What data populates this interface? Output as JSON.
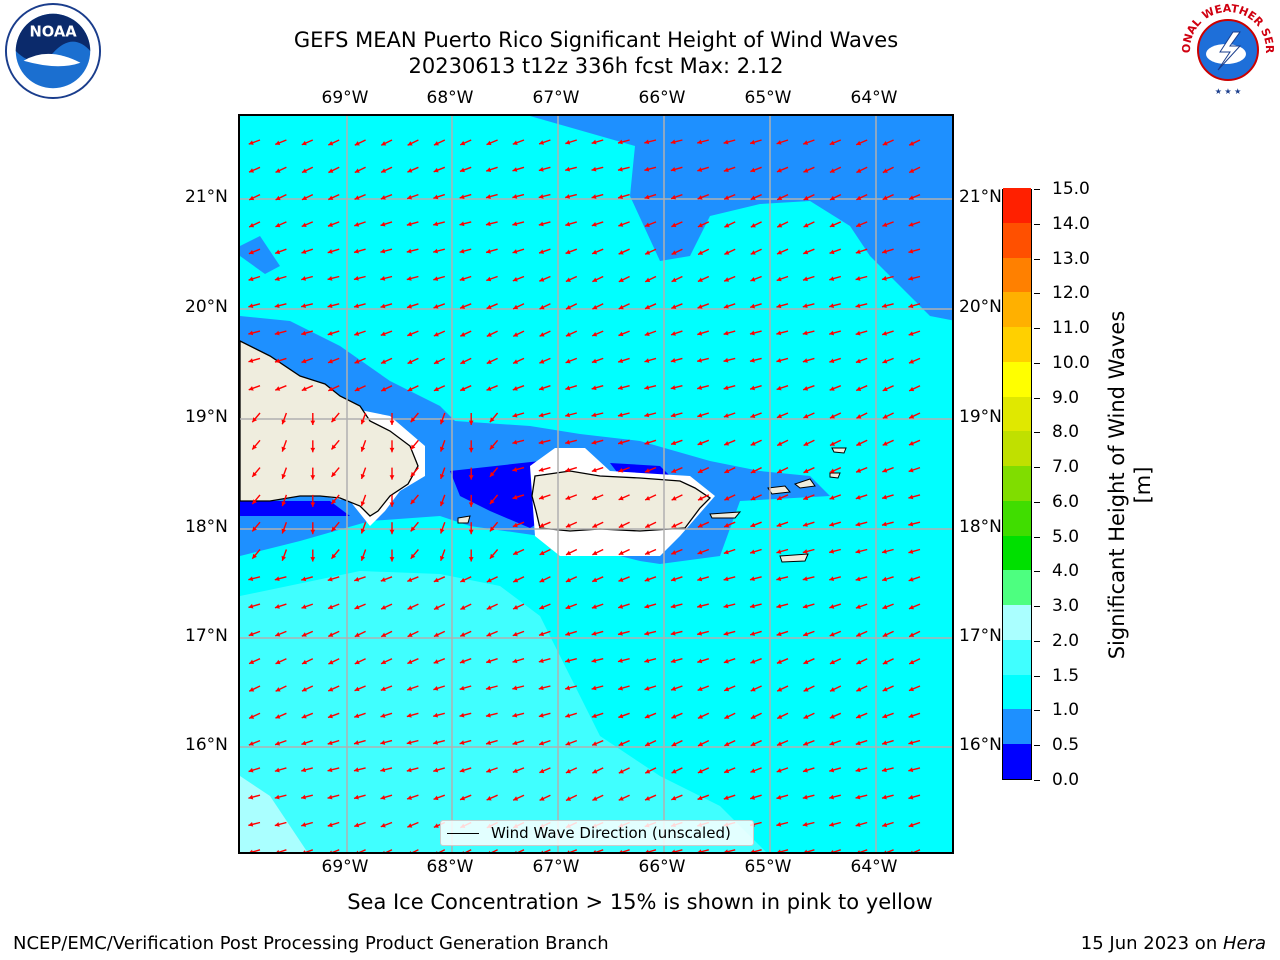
{
  "title": {
    "line1": "GEFS MEAN Puerto Rico Significant Height of Wind Waves",
    "line2": "20230613 t12z 336h fcst   Max: 2.12"
  },
  "map": {
    "lon_labels": [
      "69°W",
      "68°W",
      "67°W",
      "66°W",
      "65°W",
      "64°W"
    ],
    "lat_labels": [
      "21°N",
      "20°N",
      "19°N",
      "18°N",
      "17°N",
      "16°N"
    ],
    "legend_label": "Wind Wave Direction (unscaled)",
    "arrow_color": "#ff0000",
    "land_color": "#efedde",
    "grid_color": "#b0b0b0"
  },
  "colorbar": {
    "title": "Significant Height of Wind Waves [m]",
    "levels": [
      "0.0",
      "0.5",
      "1.0",
      "1.5",
      "2.0",
      "3.0",
      "4.0",
      "5.0",
      "6.0",
      "7.0",
      "8.0",
      "9.0",
      "10.0",
      "11.0",
      "12.0",
      "13.0",
      "14.0",
      "15.0"
    ],
    "colors": [
      "#0000ff",
      "#1e90ff",
      "#00ffff",
      "#40ffff",
      "#aaffff",
      "#4dff80",
      "#00e000",
      "#40dd00",
      "#80dd00",
      "#c0e000",
      "#e0e800",
      "#ffff00",
      "#ffd000",
      "#ffb000",
      "#ff8000",
      "#ff5000",
      "#ff2000"
    ]
  },
  "footer": {
    "note": "Sea Ice Concentration > 15% is shown in pink to yellow",
    "left": "NCEP/EMC/Verification Post Processing Product Generation Branch",
    "right_date": "15 Jun 2023 on ",
    "right_machine": "Hera"
  },
  "logos": {
    "noaa_text": "NOAA",
    "nws_text": "NATIONAL WEATHER SERVICE"
  }
}
